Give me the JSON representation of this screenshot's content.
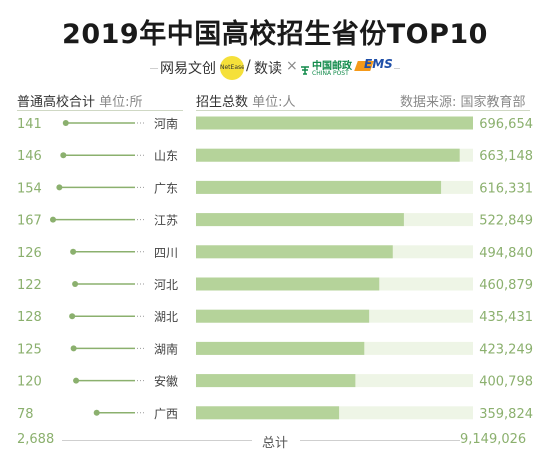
{
  "title": "2019年中国高校招生省份TOP10",
  "brands": {
    "netease": "网易文创",
    "badge": "NetEase",
    "slash": "/",
    "shudu": "数读",
    "times": "×",
    "post_cn": "中国邮政",
    "post_en": "CHINA POST",
    "ems": "EMS"
  },
  "headers": {
    "left_title": "普通高校合计",
    "left_unit": "单位:所",
    "right_title": "招生总数",
    "right_unit": "单位:人",
    "source": "数据来源: 国家教育部"
  },
  "footer": {
    "left_total": "2,688",
    "label": "总计",
    "right_total": "9,149,026"
  },
  "colors": {
    "bar": "#b5d39a",
    "bar_track": "#eef5e6",
    "dot": "#8bb06e",
    "dotted": "#9a9a9a"
  },
  "chart_data": {
    "type": "bar",
    "categories": [
      "河南",
      "山东",
      "广东",
      "江苏",
      "四川",
      "河北",
      "湖北",
      "湖南",
      "安徽",
      "广西"
    ],
    "series": [
      {
        "name": "普通高校合计",
        "values": [
          141,
          146,
          154,
          167,
          126,
          122,
          128,
          125,
          120,
          78
        ]
      },
      {
        "name": "招生总数",
        "values": [
          696654,
          663148,
          616331,
          522849,
          494840,
          460879,
          435431,
          423249,
          400798,
          359824
        ]
      }
    ],
    "left_labels": [
      "141",
      "146",
      "154",
      "167",
      "126",
      "122",
      "128",
      "125",
      "120",
      "78"
    ],
    "right_labels": [
      "696,654",
      "663,148",
      "616,331",
      "522,849",
      "494,840",
      "460,879",
      "435,431",
      "423,249",
      "400,798",
      "359,824"
    ],
    "bar_max": 696654,
    "left_max": 167
  }
}
